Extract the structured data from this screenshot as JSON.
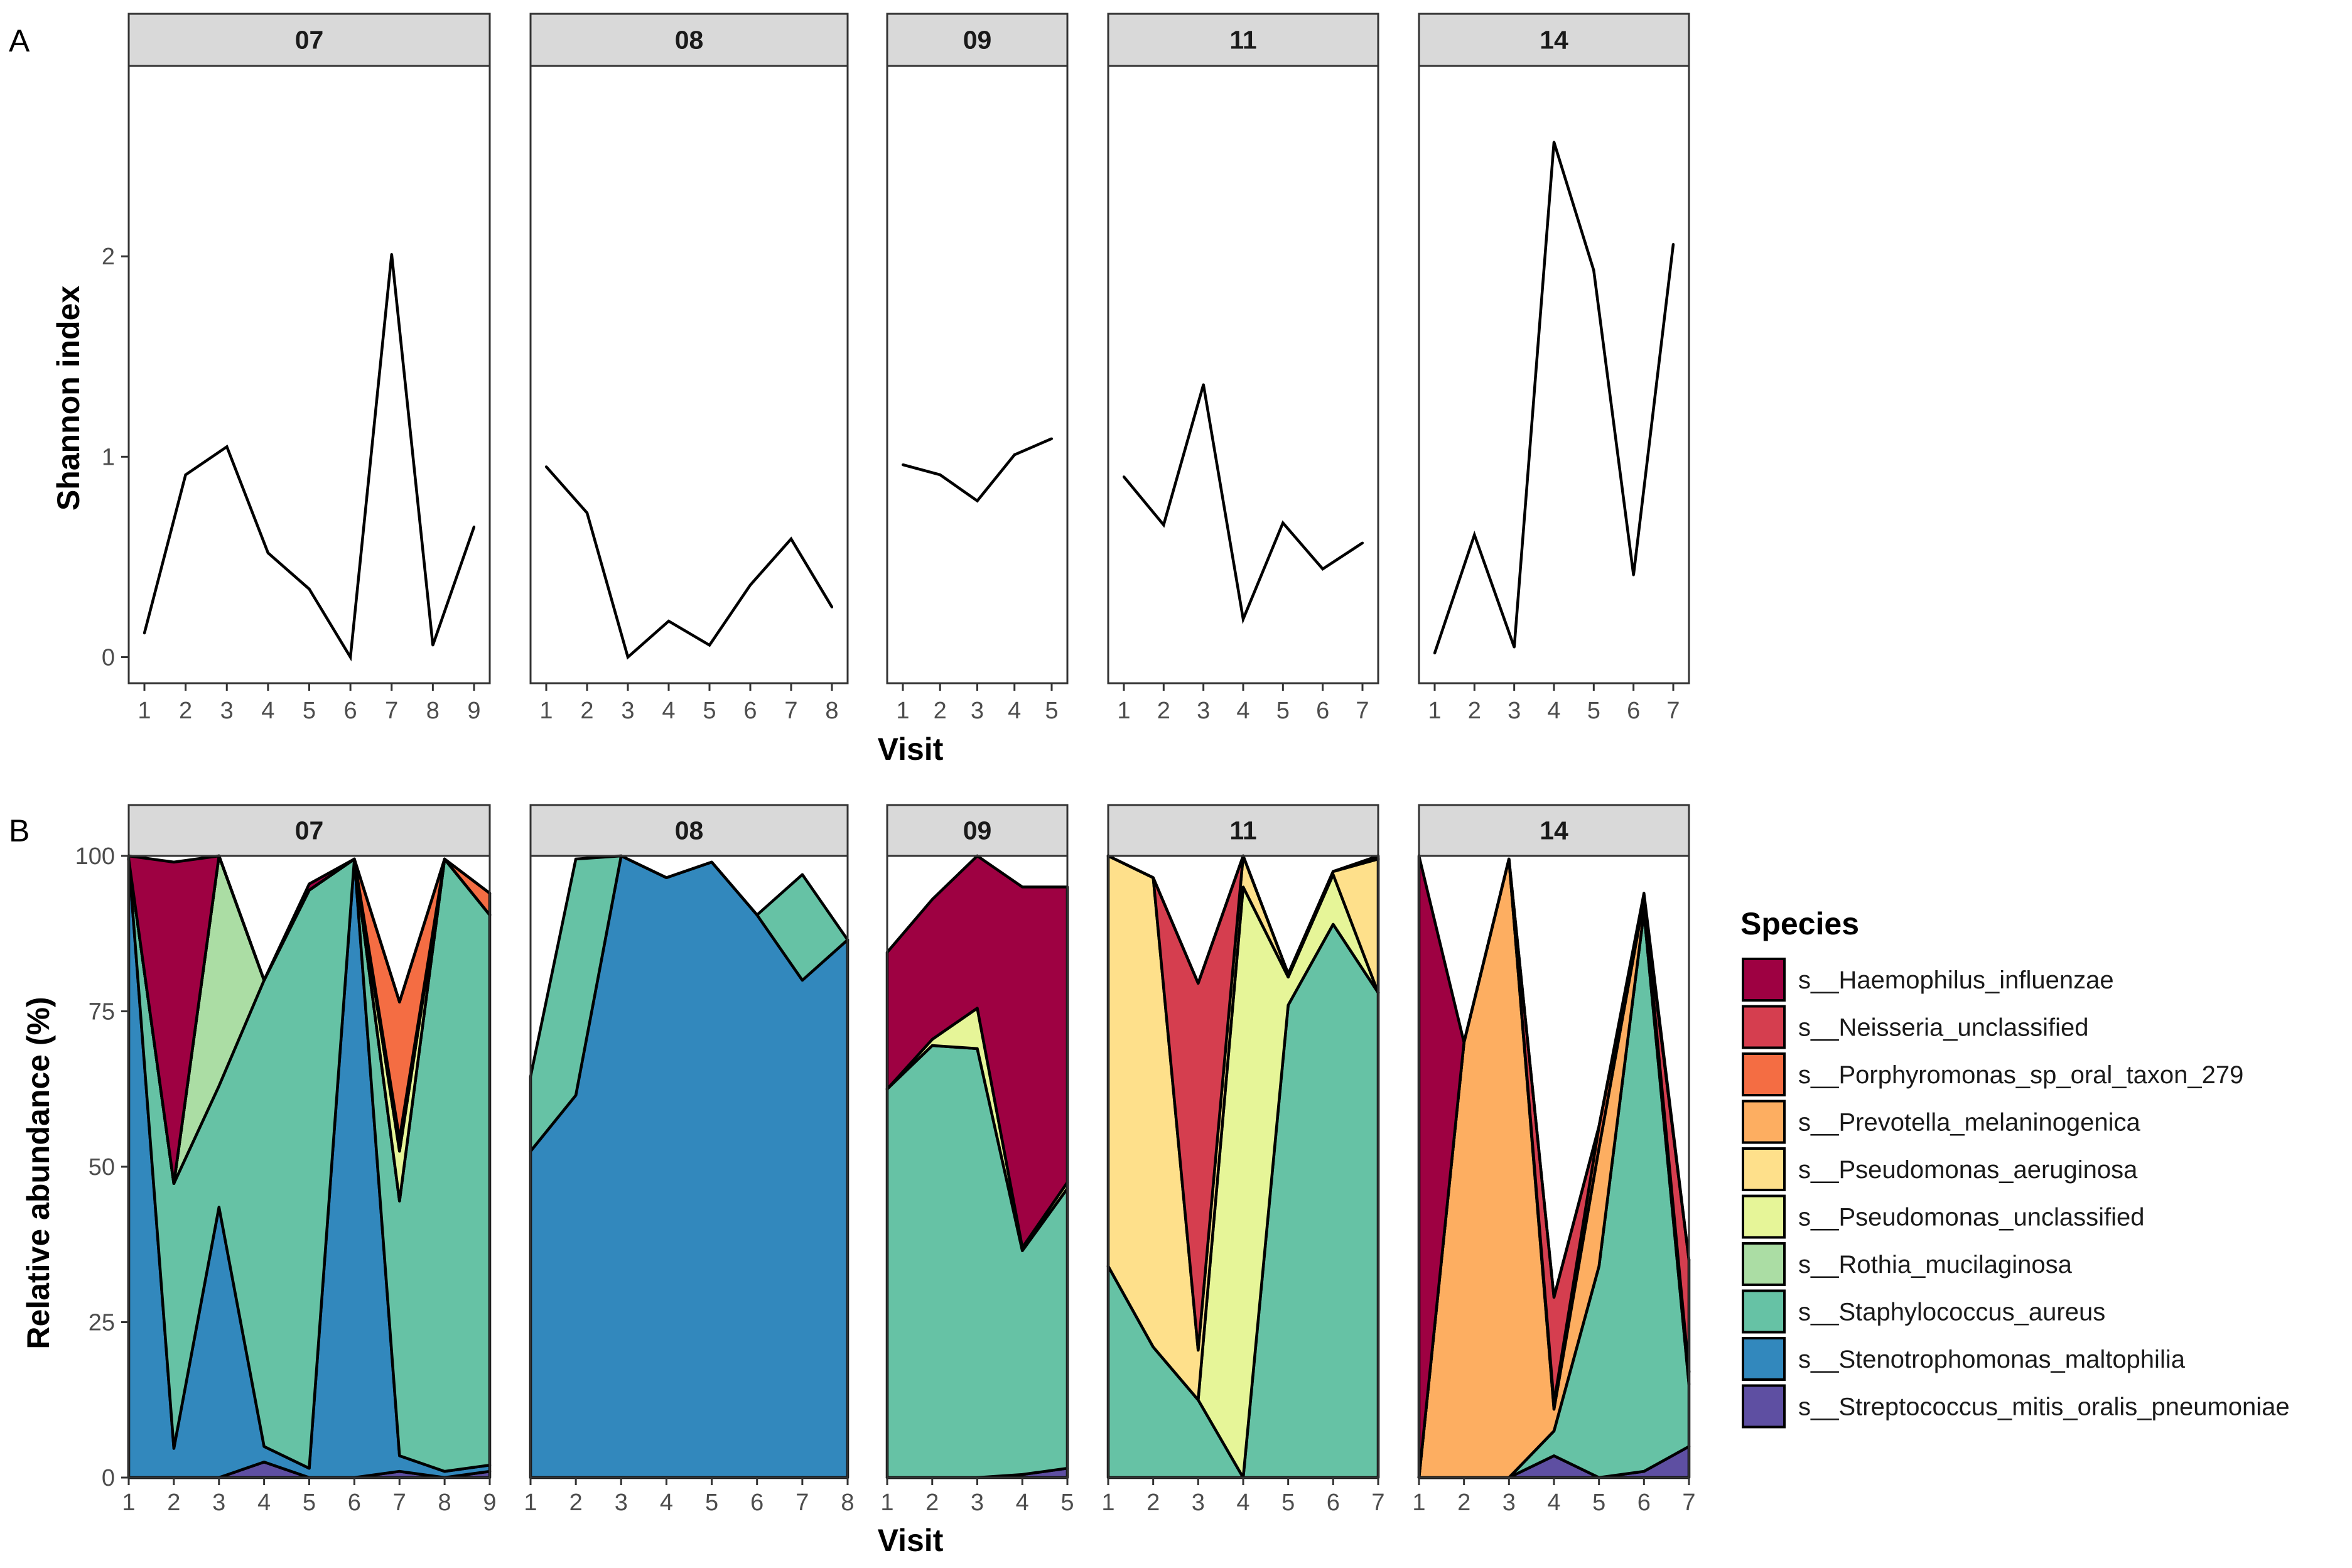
{
  "figure": {
    "panel_a_letter": "A",
    "panel_b_letter": "B"
  },
  "chart_data": [
    {
      "type": "line",
      "panel": "A",
      "title": "",
      "xlabel": "Visit",
      "ylabel": "Shannon index",
      "ylim": [
        -0.13,
        2.95
      ],
      "yticks": [
        0,
        1,
        2
      ],
      "grid": false,
      "facets": [
        {
          "id": "07",
          "x": [
            1,
            2,
            3,
            4,
            5,
            6,
            7,
            8,
            9
          ],
          "y": [
            0.12,
            0.91,
            1.05,
            0.52,
            0.34,
            0.0,
            2.01,
            0.06,
            0.65
          ]
        },
        {
          "id": "08",
          "x": [
            1,
            2,
            3,
            4,
            5,
            6,
            7,
            8
          ],
          "y": [
            0.95,
            0.72,
            0.0,
            0.18,
            0.06,
            0.36,
            0.59,
            0.25
          ]
        },
        {
          "id": "09",
          "x": [
            1,
            2,
            3,
            4,
            5
          ],
          "y": [
            0.96,
            0.91,
            0.78,
            1.01,
            1.09
          ]
        },
        {
          "id": "11",
          "x": [
            1,
            2,
            3,
            4,
            5,
            6,
            7
          ],
          "y": [
            0.9,
            0.66,
            1.36,
            0.19,
            0.67,
            0.44,
            0.57
          ]
        },
        {
          "id": "14",
          "x": [
            1,
            2,
            3,
            4,
            5,
            6,
            7
          ],
          "y": [
            0.02,
            0.61,
            0.05,
            2.57,
            1.93,
            0.41,
            2.06
          ]
        }
      ]
    },
    {
      "type": "area",
      "panel": "B",
      "title": "",
      "xlabel": "Visit",
      "ylabel": "Relative abundance (%)",
      "ylim": [
        0,
        100
      ],
      "yticks": [
        0,
        25,
        50,
        75,
        100
      ],
      "grid": false,
      "legend_title": "Species",
      "legend_position": "right",
      "stack_order_bottom_to_top": [
        "s__Streptococcus_mitis_oralis_pneumoniae",
        "s__Stenotrophomonas_maltophilia",
        "s__Staphylococcus_aureus",
        "s__Rothia_mucilaginosa",
        "s__Pseudomonas_unclassified",
        "s__Pseudomonas_aeruginosa",
        "s__Prevotella_melaninogenica",
        "s__Porphyromonas_sp_oral_taxon_279",
        "s__Neisseria_unclassified",
        "s__Haemophilus_influenzae"
      ],
      "species": [
        {
          "name": "s__Haemophilus_influenzae",
          "color": "#9E0142"
        },
        {
          "name": "s__Neisseria_unclassified",
          "color": "#D53E4F"
        },
        {
          "name": "s__Porphyromonas_sp_oral_taxon_279",
          "color": "#F46D43"
        },
        {
          "name": "s__Prevotella_melaninogenica",
          "color": "#FDAE61"
        },
        {
          "name": "s__Pseudomonas_aeruginosa",
          "color": "#FEE08B"
        },
        {
          "name": "s__Pseudomonas_unclassified",
          "color": "#E6F598"
        },
        {
          "name": "s__Rothia_mucilaginosa",
          "color": "#ABDDA4"
        },
        {
          "name": "s__Staphylococcus_aureus",
          "color": "#66C2A5"
        },
        {
          "name": "s__Stenotrophomonas_maltophilia",
          "color": "#3288BD"
        },
        {
          "name": "s__Streptococcus_mitis_oralis_pneumoniae",
          "color": "#5E4FA2"
        }
      ],
      "facets": [
        {
          "id": "07",
          "x": [
            1,
            2,
            3,
            4,
            5,
            6,
            7,
            8,
            9
          ],
          "values": {
            "s__Streptococcus_mitis_oralis_pneumoniae": [
              0,
              0,
              0,
              2.5,
              0,
              0,
              1,
              0,
              1
            ],
            "s__Stenotrophomonas_maltophilia": [
              99.5,
              4.7,
              43.5,
              2.5,
              1.5,
              99.5,
              2.5,
              1,
              1
            ],
            "s__Staphylococcus_aureus": [
              0,
              42.6,
              19.5,
              75,
              93,
              0,
              41,
              98.5,
              88.5
            ],
            "s__Rothia_mucilaginosa": [
              0,
              0,
              37,
              0,
              0,
              0,
              0,
              0,
              0
            ],
            "s__Pseudomonas_unclassified": [
              0,
              0,
              0,
              0,
              0,
              0,
              8,
              0,
              0
            ],
            "s__Pseudomonas_aeruginosa": [
              0,
              0,
              0,
              0,
              0,
              0,
              1,
              0,
              0
            ],
            "s__Prevotella_melaninogenica": [
              0,
              0,
              0,
              0,
              0,
              0,
              1,
              0,
              0
            ],
            "s__Porphyromonas_sp_oral_taxon_279": [
              0,
              0,
              0,
              0,
              0,
              0,
              22,
              0,
              3.5
            ],
            "s__Neisseria_unclassified": [
              0,
              0,
              0,
              0,
              0,
              0,
              0,
              0,
              0
            ],
            "s__Haemophilus_influenzae": [
              0.5,
              51.7,
              0,
              0,
              1,
              0,
              0,
              0,
              0
            ]
          }
        },
        {
          "id": "08",
          "x": [
            1,
            2,
            3,
            4,
            5,
            6,
            7,
            8
          ],
          "values": {
            "s__Streptococcus_mitis_oralis_pneumoniae": [
              0,
              0,
              0,
              0,
              0,
              0,
              0,
              0
            ],
            "s__Stenotrophomonas_maltophilia": [
              52.5,
              61.5,
              100,
              96.5,
              99,
              90.5,
              80,
              86.5
            ],
            "s__Staphylococcus_aureus": [
              12,
              38,
              0,
              0,
              0,
              0,
              17,
              0
            ],
            "s__Rothia_mucilaginosa": [
              0,
              0,
              0,
              0,
              0,
              0,
              0,
              0
            ],
            "s__Pseudomonas_unclassified": [
              0,
              0,
              0,
              0,
              0,
              0,
              0,
              0
            ],
            "s__Pseudomonas_aeruginosa": [
              0,
              0,
              0,
              0,
              0,
              0,
              0,
              0
            ],
            "s__Prevotella_melaninogenica": [
              0,
              0,
              0,
              0,
              0,
              0,
              0,
              0
            ],
            "s__Porphyromonas_sp_oral_taxon_279": [
              0,
              0,
              0,
              0,
              0,
              0,
              0,
              0
            ],
            "s__Neisseria_unclassified": [
              0,
              0,
              0,
              0,
              0,
              0,
              0,
              0
            ],
            "s__Haemophilus_influenzae": [
              0,
              0,
              0,
              0,
              0,
              0,
              0,
              0
            ]
          }
        },
        {
          "id": "09",
          "x": [
            1,
            2,
            3,
            4,
            5
          ],
          "values": {
            "s__Streptococcus_mitis_oralis_pneumoniae": [
              0,
              0,
              0,
              0.5,
              1.5
            ],
            "s__Stenotrophomonas_maltophilia": [
              0,
              0,
              0,
              0,
              0
            ],
            "s__Staphylococcus_aureus": [
              62.5,
              69.5,
              69,
              36,
              45
            ],
            "s__Rothia_mucilaginosa": [
              0,
              0,
              0,
              0,
              0
            ],
            "s__Pseudomonas_unclassified": [
              0,
              1,
              6.5,
              0.5,
              1
            ],
            "s__Pseudomonas_aeruginosa": [
              0,
              0,
              0,
              0,
              0
            ],
            "s__Prevotella_melaninogenica": [
              0,
              0,
              0,
              0,
              0
            ],
            "s__Porphyromonas_sp_oral_taxon_279": [
              0,
              0,
              0,
              0,
              0
            ],
            "s__Neisseria_unclassified": [
              0,
              0,
              0,
              0,
              0
            ],
            "s__Haemophilus_influenzae": [
              22,
              22.5,
              24.5,
              58,
              47.5
            ]
          }
        },
        {
          "id": "11",
          "x": [
            1,
            2,
            3,
            4,
            5,
            6,
            7
          ],
          "values": {
            "s__Streptococcus_mitis_oralis_pneumoniae": [
              0,
              0,
              0,
              0,
              0,
              0,
              0
            ],
            "s__Stenotrophomonas_maltophilia": [
              0,
              0,
              0,
              0,
              0,
              0,
              0
            ],
            "s__Staphylococcus_aureus": [
              34,
              21,
              12.5,
              0,
              76,
              89,
              78
            ],
            "s__Rothia_mucilaginosa": [
              0,
              0,
              0,
              0,
              0,
              0,
              0
            ],
            "s__Pseudomonas_unclassified": [
              0,
              0,
              0,
              95,
              4.5,
              8,
              0
            ],
            "s__Pseudomonas_aeruginosa": [
              66,
              75.5,
              8,
              5,
              0.5,
              0.5,
              21.5
            ],
            "s__Prevotella_melaninogenica": [
              0,
              0,
              0,
              0,
              0,
              0,
              0
            ],
            "s__Porphyromonas_sp_oral_taxon_279": [
              0,
              0,
              0,
              0,
              0,
              0,
              0
            ],
            "s__Neisseria_unclassified": [
              0,
              0,
              59,
              0,
              0,
              0,
              0
            ],
            "s__Haemophilus_influenzae": [
              0,
              0,
              0,
              0,
              0,
              0,
              0.5
            ]
          }
        },
        {
          "id": "14",
          "x": [
            1,
            2,
            3,
            4,
            5,
            6,
            7
          ],
          "values": {
            "s__Streptococcus_mitis_oralis_pneumoniae": [
              0,
              0,
              0,
              3.5,
              0,
              1,
              5
            ],
            "s__Stenotrophomonas_maltophilia": [
              0,
              0,
              0,
              0,
              0,
              0,
              0
            ],
            "s__Staphylococcus_aureus": [
              0,
              0,
              0,
              4,
              34,
              90,
              10
            ],
            "s__Rothia_mucilaginosa": [
              0,
              0,
              0,
              0,
              0,
              0,
              0
            ],
            "s__Pseudomonas_unclassified": [
              0,
              0,
              0,
              0,
              0,
              0,
              2
            ],
            "s__Pseudomonas_aeruginosa": [
              0,
              0,
              0,
              0,
              0,
              0,
              0
            ],
            "s__Prevotella_melaninogenica": [
              0,
              70,
              99.5,
              3.5,
              19,
              2,
              0
            ],
            "s__Porphyromonas_sp_oral_taxon_279": [
              0,
              0,
              0,
              1,
              3.5,
              0,
              0
            ],
            "s__Neisseria_unclassified": [
              0,
              0,
              0,
              17,
              0,
              0,
              18
            ],
            "s__Haemophilus_influenzae": [
              100,
              0,
              0,
              0,
              0,
              1,
              0
            ]
          }
        }
      ]
    }
  ]
}
